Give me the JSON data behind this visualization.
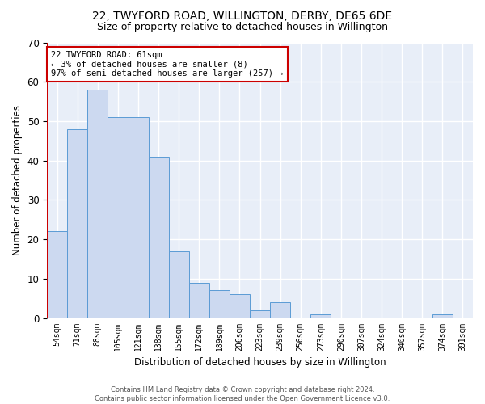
{
  "title": "22, TWYFORD ROAD, WILLINGTON, DERBY, DE65 6DE",
  "subtitle": "Size of property relative to detached houses in Willington",
  "xlabel": "Distribution of detached houses by size in Willington",
  "ylabel": "Number of detached properties",
  "bar_color": "#ccd9f0",
  "bar_edge_color": "#5b9bd5",
  "background_color": "#e8eef8",
  "grid_color": "#ffffff",
  "categories": [
    "54sqm",
    "71sqm",
    "88sqm",
    "105sqm",
    "121sqm",
    "138sqm",
    "155sqm",
    "172sqm",
    "189sqm",
    "206sqm",
    "223sqm",
    "239sqm",
    "256sqm",
    "273sqm",
    "290sqm",
    "307sqm",
    "324sqm",
    "340sqm",
    "357sqm",
    "374sqm",
    "391sqm"
  ],
  "values": [
    22,
    48,
    58,
    51,
    51,
    41,
    17,
    9,
    7,
    6,
    2,
    4,
    0,
    1,
    0,
    0,
    0,
    0,
    0,
    1,
    0
  ],
  "ylim": [
    0,
    70
  ],
  "yticks": [
    0,
    10,
    20,
    30,
    40,
    50,
    60,
    70
  ],
  "annotation_text": "22 TWYFORD ROAD: 61sqm\n← 3% of detached houses are smaller (8)\n97% of semi-detached houses are larger (257) →",
  "footer_text": "Contains HM Land Registry data © Crown copyright and database right 2024.\nContains public sector information licensed under the Open Government Licence v3.0.",
  "red_line_color": "#cc0000",
  "annotation_box_edge": "#cc0000",
  "title_fontsize": 10,
  "subtitle_fontsize": 9,
  "ylabel_fontsize": 8.5,
  "xlabel_fontsize": 8.5,
  "ytick_fontsize": 8.5,
  "xtick_fontsize": 7,
  "annotation_fontsize": 7.5,
  "footer_fontsize": 6
}
